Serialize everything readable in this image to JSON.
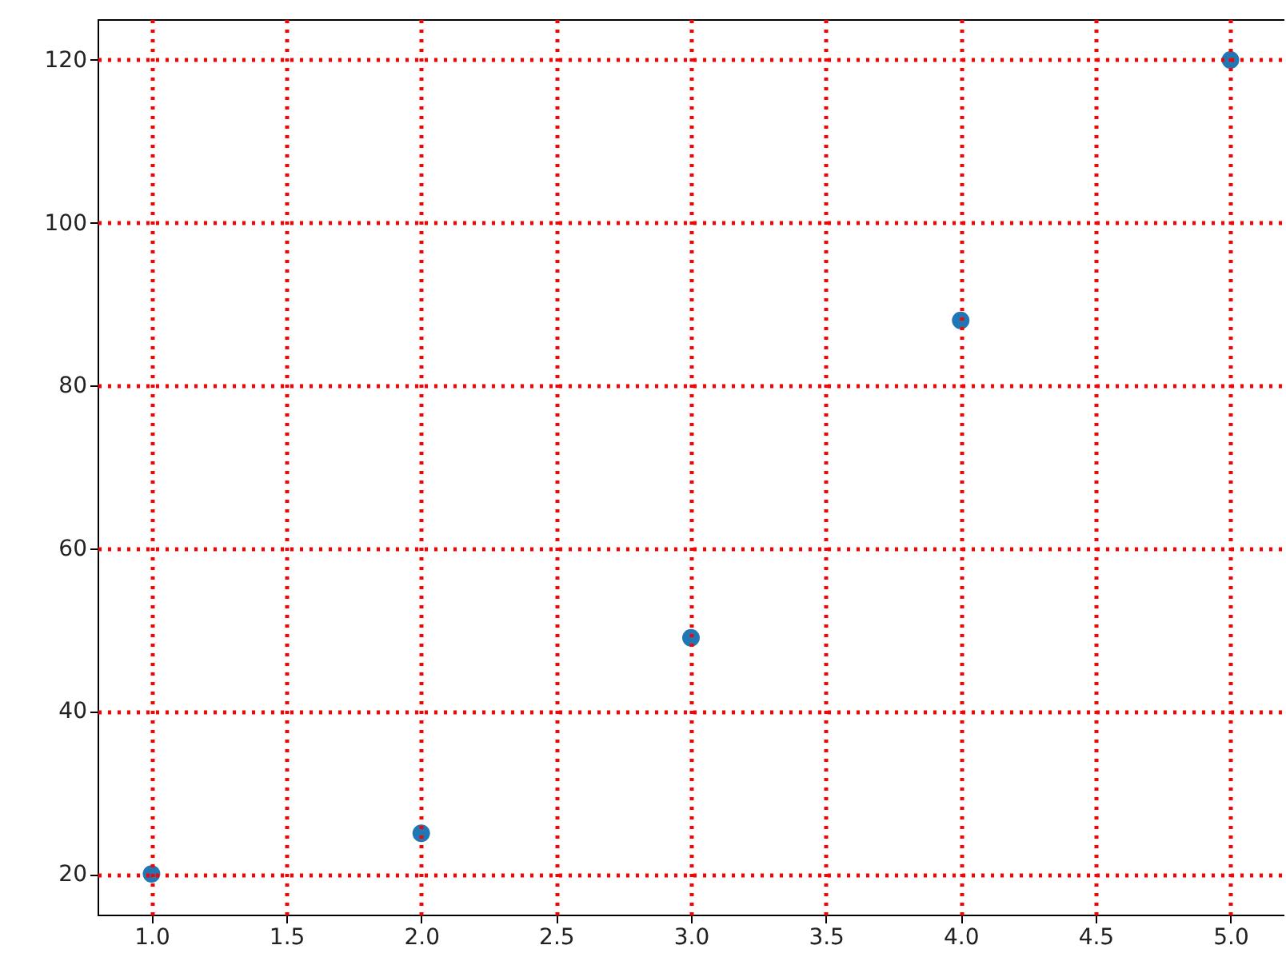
{
  "chart_data": {
    "type": "scatter",
    "x": [
      1,
      2,
      3,
      4,
      5
    ],
    "series": [
      {
        "color": "#1f77b4",
        "values": [
          20,
          25,
          49,
          88,
          120
        ]
      }
    ],
    "xlim": [
      0.8,
      5.2
    ],
    "xticks": [
      {
        "value": 1,
        "label": "1.0"
      },
      {
        "value": 1.5,
        "label": "1.5"
      },
      {
        "value": 2,
        "label": "2.0"
      },
      {
        "value": 2.5,
        "label": "2.5"
      },
      {
        "value": 3,
        "label": "3.0"
      },
      {
        "value": 3.5,
        "label": "3.5"
      },
      {
        "value": 4,
        "label": "4.0"
      },
      {
        "value": 4.5,
        "label": "4.5"
      },
      {
        "value": 5,
        "label": "5.0"
      }
    ],
    "ylim": [
      15,
      125
    ],
    "yticks": [
      20,
      40,
      60,
      80,
      100,
      120
    ],
    "grid": true,
    "marker": "circle"
  }
}
